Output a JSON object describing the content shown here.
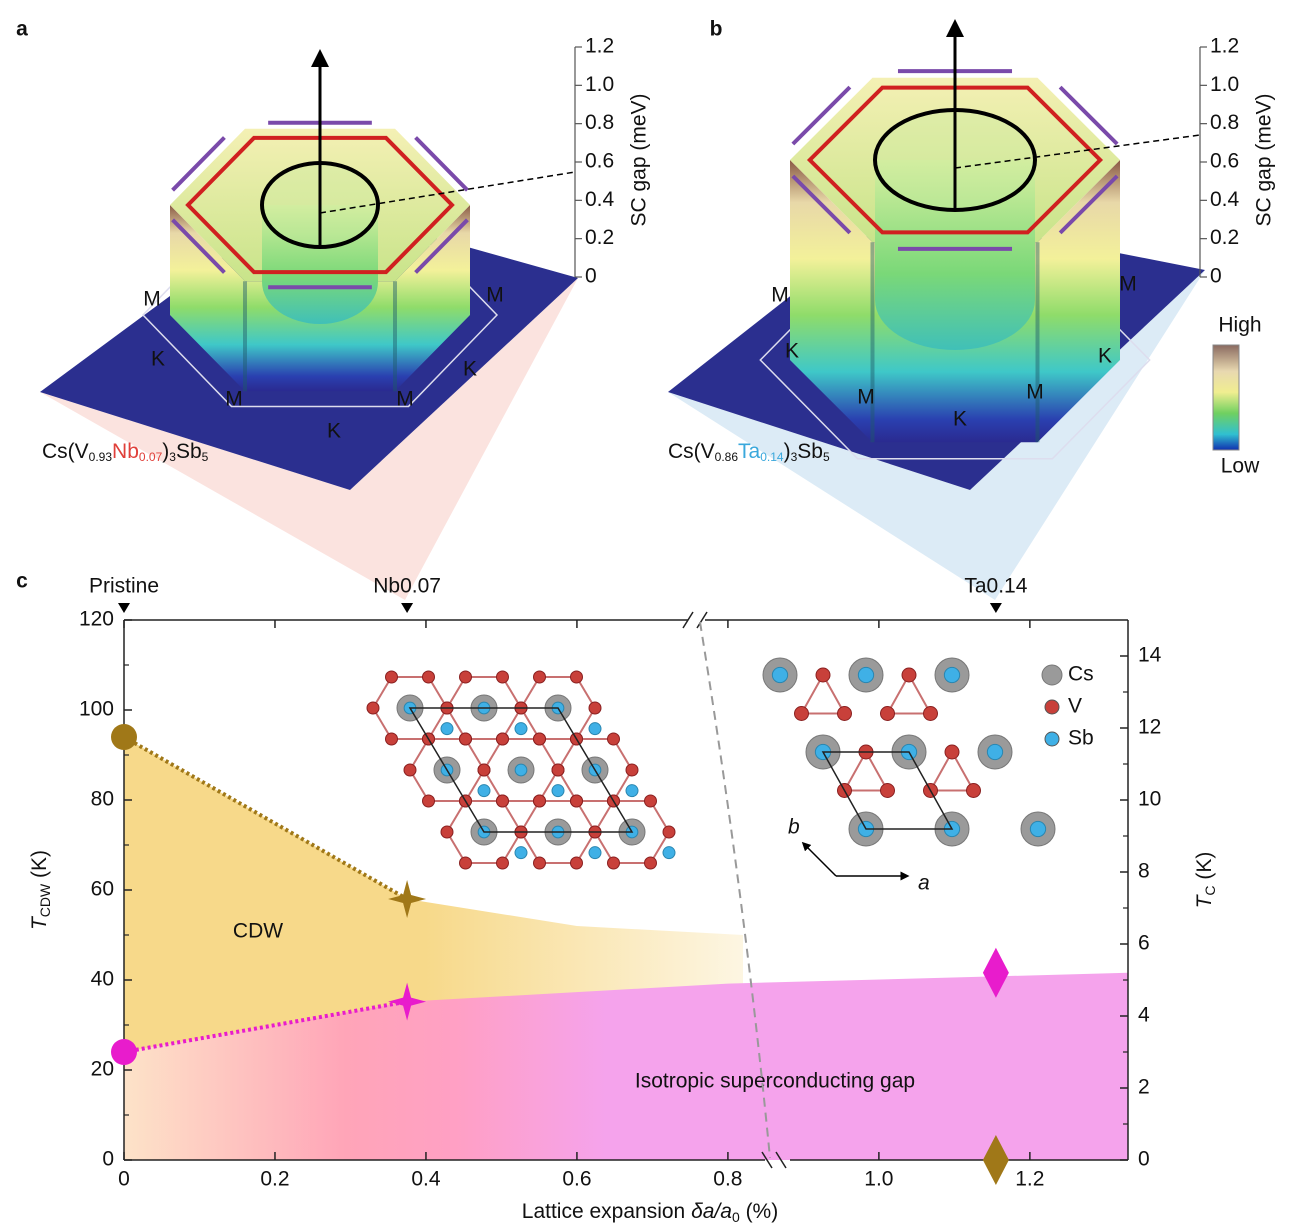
{
  "chart_data": [
    {
      "type": "gap3d",
      "panel": "a",
      "compound": [
        "Cs(V",
        "0.93",
        "Nb",
        "0.07",
        ")",
        "3",
        "Sb",
        "5"
      ],
      "dopant_color": "#e0403a",
      "ylabel": "SC gap (meV)",
      "ylim": [
        0,
        1.2
      ],
      "yticks": [
        0,
        0.2,
        0.4,
        0.6,
        0.8,
        {
          "value": 1,
          "label": "1.0"
        },
        1.2
      ],
      "points": [
        "M",
        "M",
        "K",
        "K",
        "M",
        "M",
        "K"
      ]
    },
    {
      "type": "gap3d",
      "panel": "b",
      "compound": [
        "Cs(V",
        "0.86",
        "Ta",
        "0.14",
        ")",
        "3",
        "Sb",
        "5"
      ],
      "dopant_color": "#3aa8dc",
      "ylabel": "SC gap (meV)",
      "ylim": [
        0,
        1.2
      ],
      "yticks": [
        0,
        0.2,
        0.4,
        0.6,
        0.8,
        {
          "value": 1,
          "label": "1.0"
        },
        1.2
      ],
      "points": [
        "M",
        "M",
        "K",
        "K",
        "M",
        "M",
        "K"
      ],
      "colorbar": {
        "high": "High",
        "low": "Low"
      }
    },
    {
      "type": "phase",
      "panel": "c",
      "xlabel": [
        "Lattice expansion ",
        "δa/a",
        "0",
        " (%)"
      ],
      "ylabel": [
        "T",
        "CDW",
        " (K)"
      ],
      "y2label": [
        "T",
        "C",
        " (K)"
      ],
      "xlim": [
        0,
        1.33
      ],
      "xticks": [
        0,
        0.2,
        0.4,
        0.6,
        0.8,
        {
          "value": 1,
          "label": "1.0"
        },
        1.2
      ],
      "ylim": [
        0,
        120
      ],
      "yticks": [
        0,
        20,
        40,
        60,
        80,
        100,
        120
      ],
      "y2lim": [
        0,
        15
      ],
      "y2ticks": [
        0,
        2,
        4,
        6,
        8,
        10,
        12,
        14
      ],
      "top_labels": [
        {
          "x": 0,
          "label": "Pristine"
        },
        {
          "x": 0.375,
          "label": "Nb0.07"
        },
        {
          "x": 1.155,
          "label": "Ta0.14"
        }
      ],
      "series": [
        {
          "color": "#a07818",
          "markers": [
            "circle",
            "star",
            "diamond"
          ],
          "x": [
            0,
            0.375,
            1.155
          ],
          "values": [
            94,
            58,
            0
          ]
        },
        {
          "axis": "y2",
          "color": "#e81ccc",
          "markers": [
            "circle",
            "star",
            "diamond"
          ],
          "x": [
            0,
            0.375,
            1.155
          ],
          "values": [
            3,
            4.4,
            5.2
          ]
        }
      ],
      "regions": [
        {
          "label": "CDW",
          "color": "#f7d98a",
          "x": [
            0,
            0.375,
            0.6,
            0.82
          ],
          "values": [
            94,
            58,
            52,
            50
          ]
        },
        {
          "label": "Isotropic superconducting gap",
          "axis": "y2",
          "color": "#f5a3ec",
          "x": [
            0,
            0.375,
            0.8,
            1.33
          ],
          "values": [
            3,
            4.4,
            4.9,
            5.2
          ]
        }
      ],
      "legend": [
        {
          "name": "Cs",
          "color": "#9a9a9a"
        },
        {
          "name": "V",
          "color": "#c8403a"
        },
        {
          "name": "Sb",
          "color": "#3fb0e6"
        }
      ],
      "inset_axes": [
        "a",
        "b"
      ]
    }
  ]
}
